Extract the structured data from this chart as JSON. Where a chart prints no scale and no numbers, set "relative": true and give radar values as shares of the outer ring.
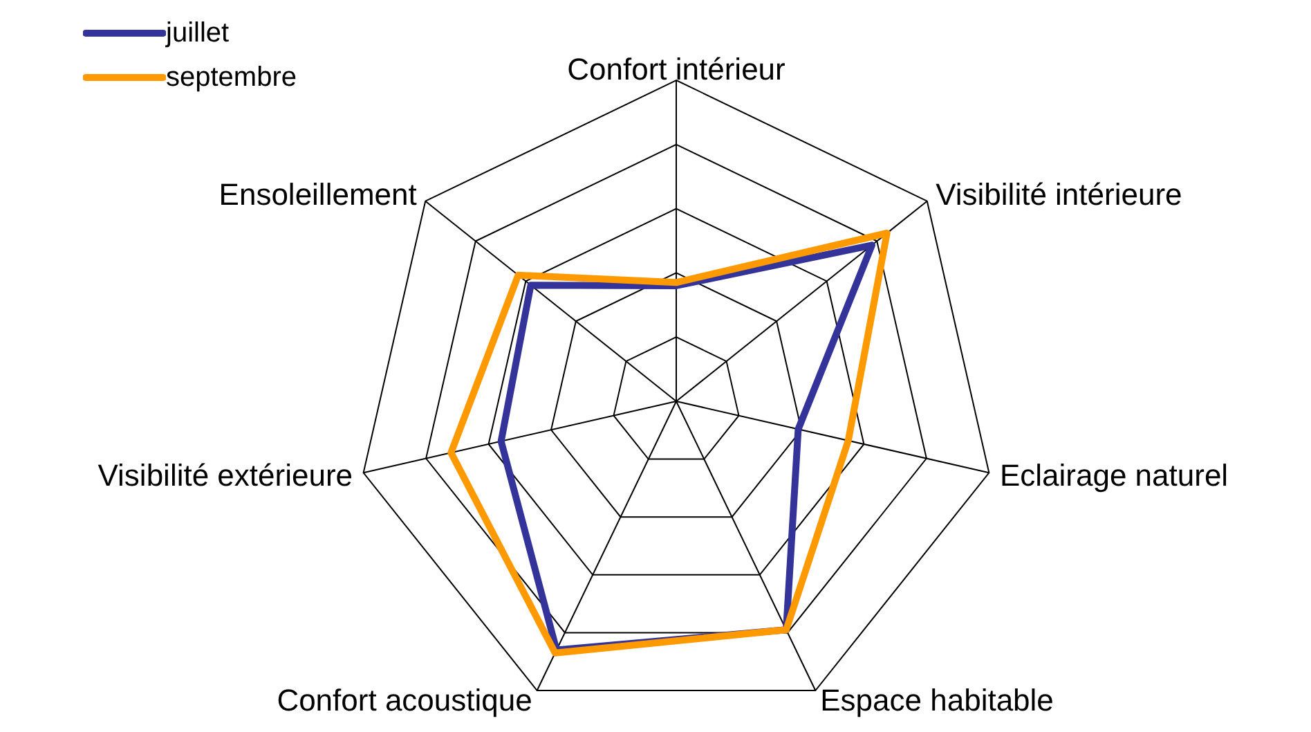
{
  "chart_data": {
    "type": "radar",
    "relative": true,
    "legend": "top left",
    "grid": true,
    "categories": [
      "Confort intérieur",
      "Visibilité intérieure",
      "Eclairage naturel",
      "Espace habitable",
      "Confort acoustique",
      "Visibilité extérieure",
      "Ensoleillement"
    ],
    "series": [
      {
        "name": "juillet",
        "color": "#333399",
        "values": [
          0.36,
          0.78,
          0.39,
          0.79,
          0.86,
          0.56,
          0.58
        ]
      },
      {
        "name": "septembre",
        "color": "#ff9900",
        "values": [
          0.37,
          0.84,
          0.55,
          0.79,
          0.87,
          0.72,
          0.63
        ]
      }
    ]
  }
}
